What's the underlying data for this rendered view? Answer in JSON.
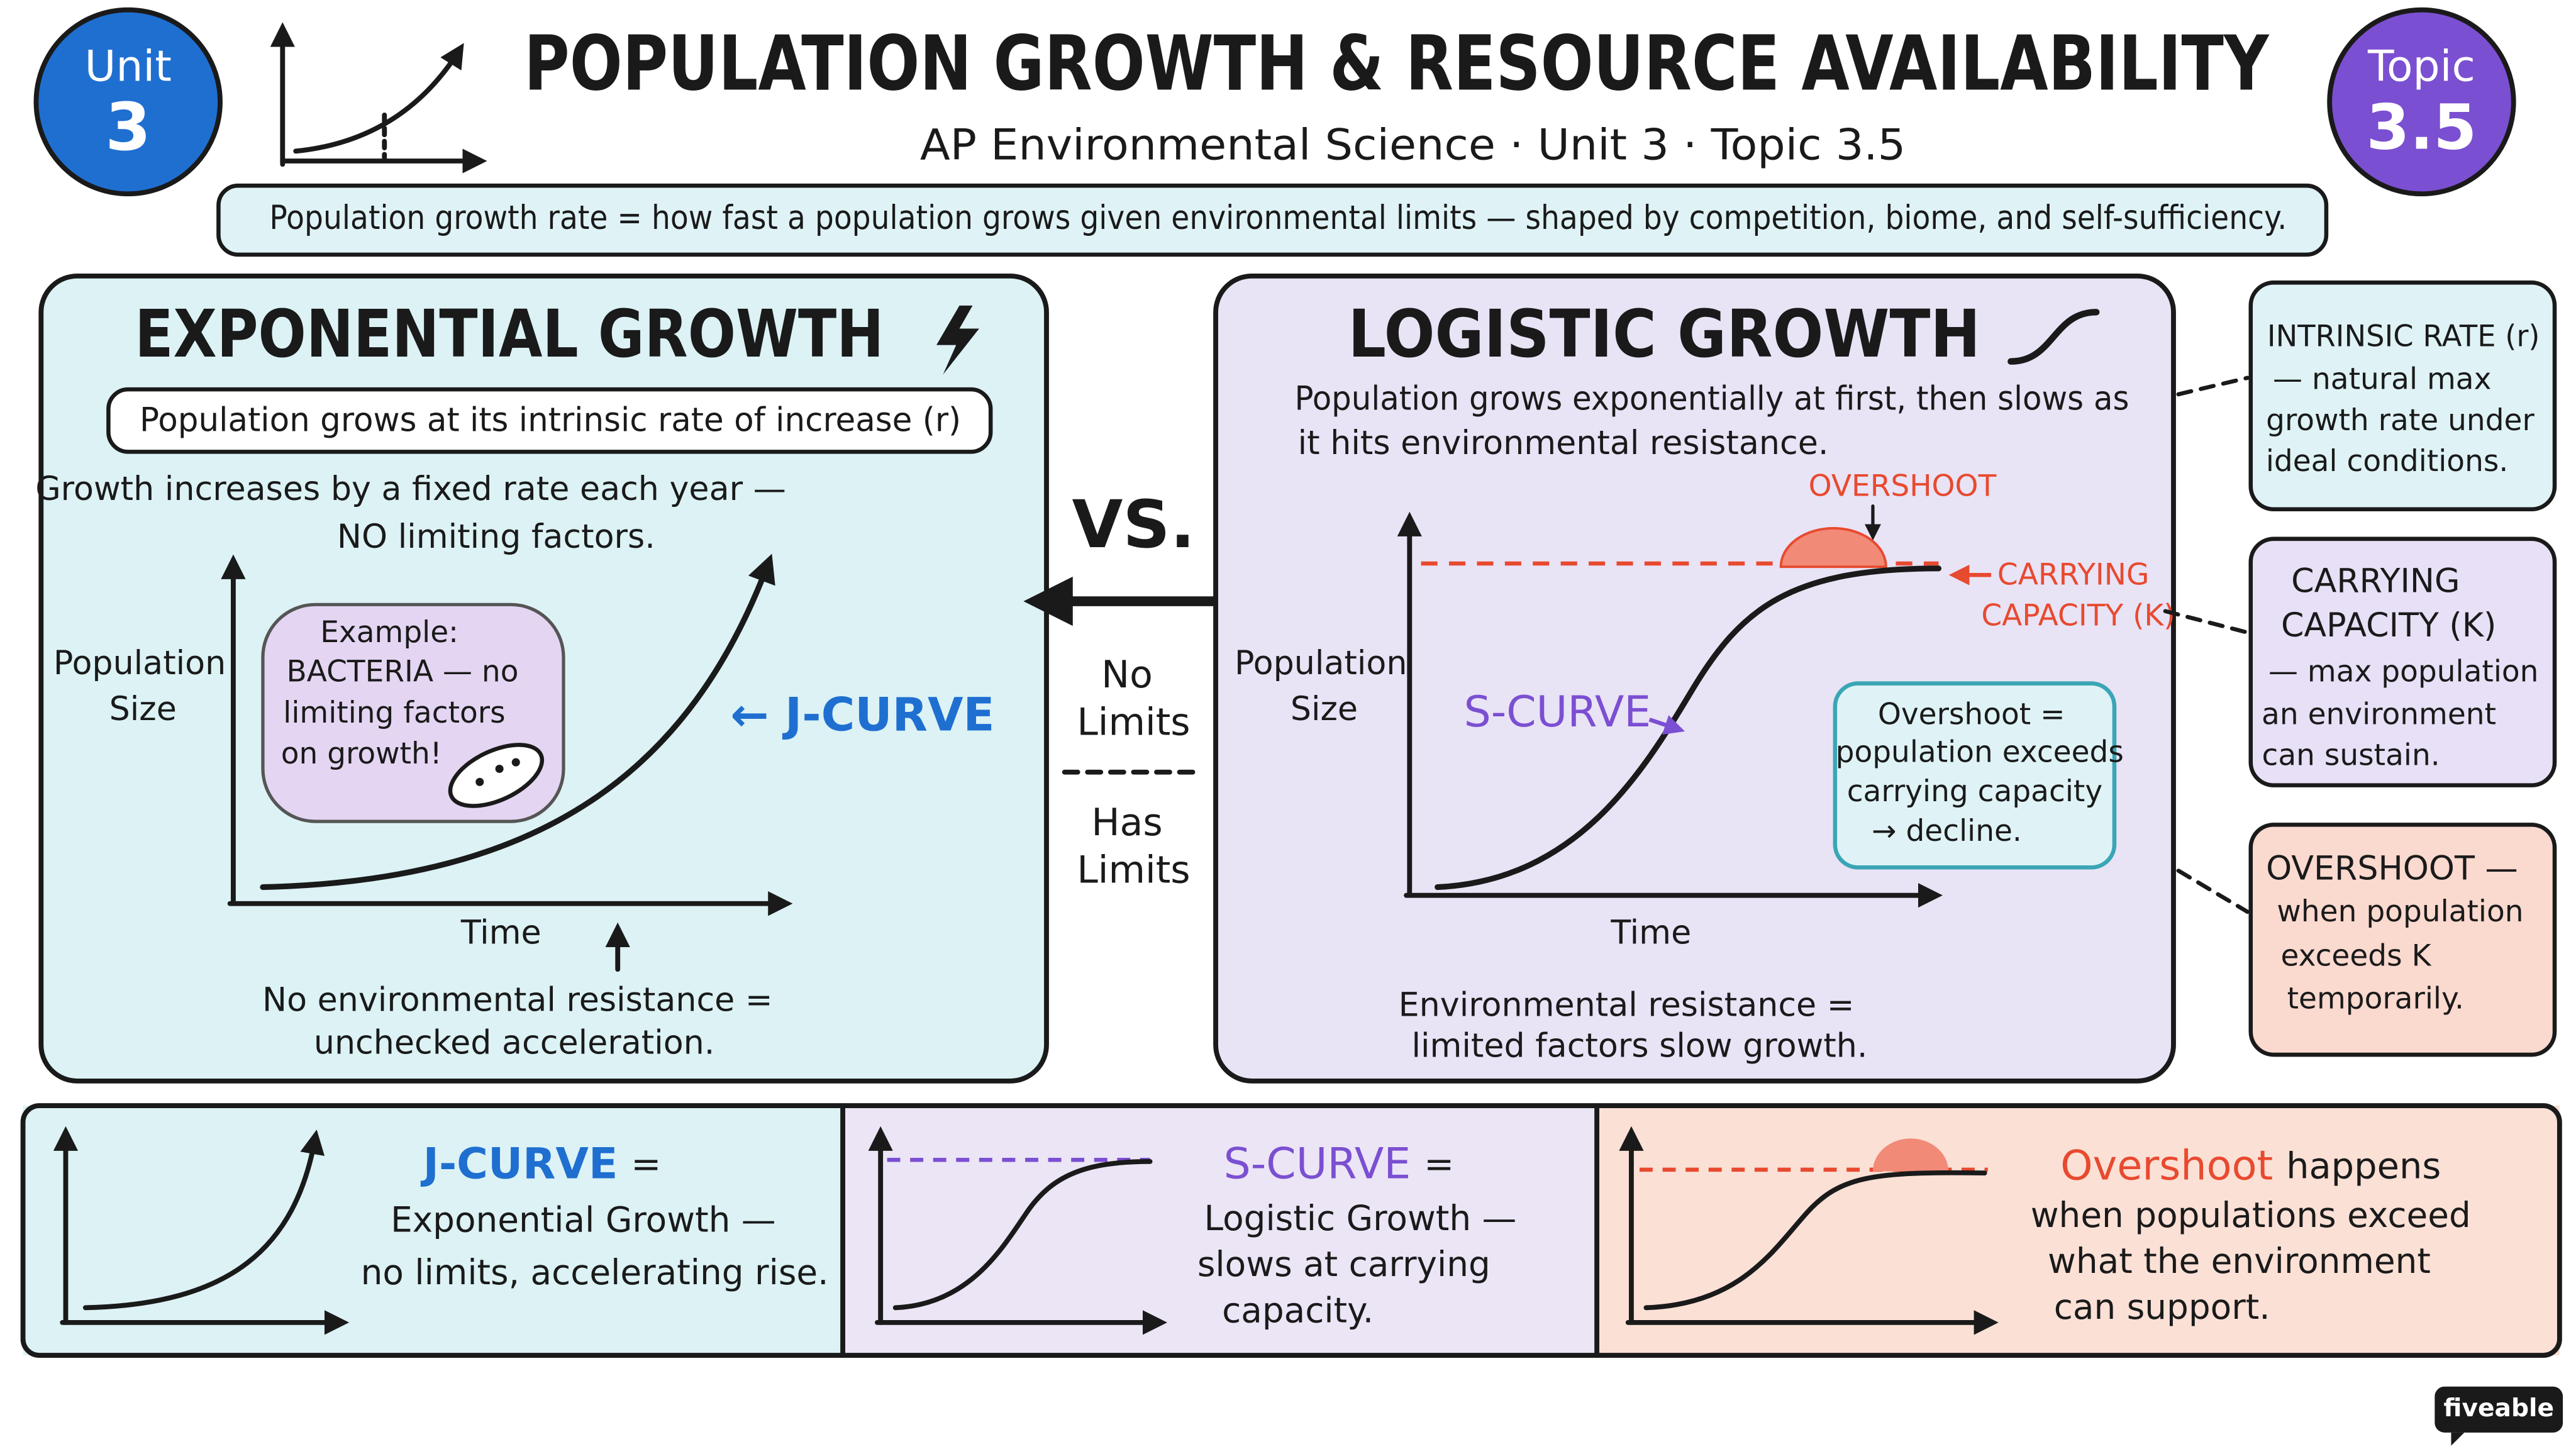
{
  "header": {
    "unit_badge": {
      "label": "Unit",
      "number": "3"
    },
    "title": "POPULATION GROWTH & RESOURCE AVAILABILITY",
    "subtitle": "AP Environmental Science · Unit 3 · Topic 3.5",
    "topic_badge": {
      "label": "Topic",
      "number": "3.5"
    },
    "definition": "Population growth rate = how fast a population grows given environmental limits — shaped by competition, biome, and self-sufficiency."
  },
  "exponential": {
    "title": "EXPONENTIAL GROWTH",
    "tagline": "Population grows at its intrinsic rate of increase (r)",
    "description": [
      "Growth increases by a fixed rate each year —",
      "NO limiting factors."
    ],
    "y_label": [
      "Population",
      "Size"
    ],
    "example": [
      "Example:",
      "BACTERIA — no",
      "limiting factors",
      "on growth!"
    ],
    "curve_label": "← J-CURVE",
    "x_label": "Time",
    "caption": [
      "No environmental resistance =",
      "unchecked acceleration."
    ]
  },
  "versus": {
    "title": "VS.",
    "top": [
      "No",
      "Limits"
    ],
    "bottom": [
      "Has",
      "Limits"
    ]
  },
  "logistic": {
    "title": "LOGISTIC GROWTH",
    "description": [
      "Population grows exponentially at first, then slows as",
      "it hits environmental resistance."
    ],
    "overshoot_label": "OVERSHOOT",
    "carrying_label": [
      "CARRYING",
      "CAPACITY (K)"
    ],
    "y_label": [
      "Population",
      "Size"
    ],
    "curve_label": "S-CURVE",
    "note": [
      "Overshoot =",
      "population exceeds",
      "carrying capacity",
      "→ decline."
    ],
    "x_label": "Time",
    "caption": [
      "Environmental resistance =",
      "limited factors slow growth."
    ]
  },
  "side_cards": [
    {
      "lines": [
        "INTRINSIC RATE (r)",
        "— natural max",
        "growth rate under",
        "ideal conditions."
      ]
    },
    {
      "lines": [
        "CARRYING",
        "CAPACITY (K)",
        "— max population",
        "an environment",
        "can sustain."
      ]
    },
    {
      "lines": [
        "OVERSHOOT —",
        "when population",
        "exceeds K",
        "temporarily."
      ]
    }
  ],
  "summary": [
    {
      "term": "J-CURVE",
      "rest": "=",
      "lines": [
        "Exponential Growth —",
        "no limits, accelerating rise."
      ]
    },
    {
      "term": "S-CURVE",
      "rest": "=",
      "lines": [
        "Logistic Growth —",
        "slows at carrying",
        "capacity."
      ]
    },
    {
      "term": "Overshoot",
      "rest": "happens",
      "lines": [
        "when populations exceed",
        "what the environment",
        "can support."
      ]
    }
  ],
  "brand": "fiveable"
}
